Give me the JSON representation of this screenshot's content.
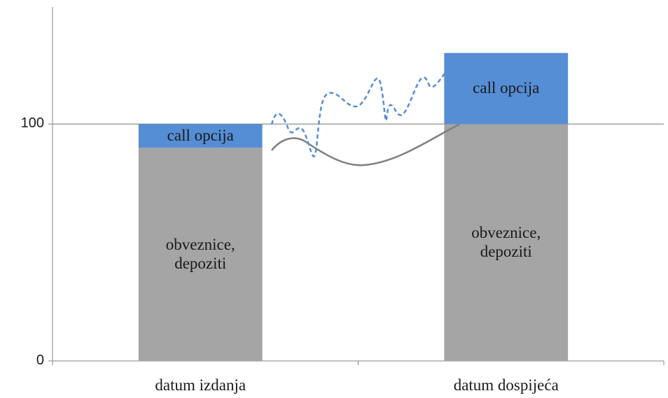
{
  "chart_data": {
    "type": "stacked_bar",
    "categories": [
      "datum izdanja",
      "datum dospijeća"
    ],
    "series": [
      {
        "name": "obveznice, depoziti",
        "color": "#a5a5a5",
        "values": [
          90,
          100
        ]
      },
      {
        "name": "call opcija",
        "color": "#558ed5",
        "values": [
          10,
          30
        ]
      }
    ],
    "ylim": [
      0,
      150
    ],
    "yticks": [
      0,
      100
    ],
    "grid": true
  }
}
